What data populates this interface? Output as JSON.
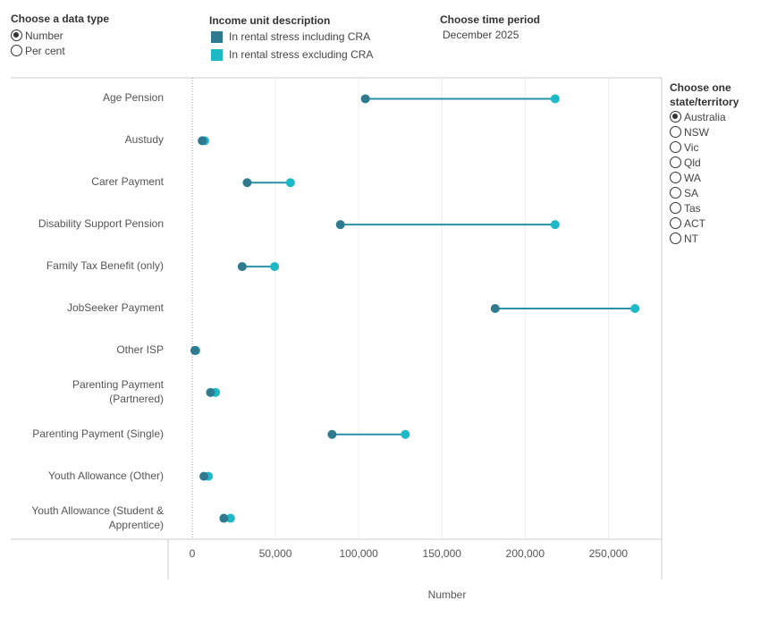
{
  "controls": {
    "data_type": {
      "title": "Choose a data type",
      "options": [
        "Number",
        "Per cent"
      ],
      "selected": 0
    },
    "time_period": {
      "title": "Choose time period",
      "value": "December 2025"
    },
    "state": {
      "title": "Choose one state/territory",
      "options": [
        "Australia",
        "NSW",
        "Vic",
        "Qld",
        "WA",
        "SA",
        "Tas",
        "ACT",
        "NT"
      ],
      "selected": 0
    }
  },
  "chart_data": {
    "type": "dumbbell",
    "legend_title": "Income unit description",
    "x_label": "Number",
    "categories": [
      "Age Pension",
      "Austudy",
      "Carer Payment",
      "Disability Support Pension",
      "Family Tax Benefit (only)",
      "JobSeeker Payment",
      "Other ISP",
      "Parenting Payment (Partnered)",
      "Parenting Payment (Single)",
      "Youth Allowance (Other)",
      "Youth Allowance (Student & Apprentice)"
    ],
    "series": [
      {
        "name": "In rental stress including CRA",
        "color": "#2f7a8e",
        "values": [
          104000,
          6000,
          33000,
          89000,
          30000,
          182000,
          1600,
          11000,
          84000,
          7000,
          19000
        ]
      },
      {
        "name": "In rental stress excluding CRA",
        "color": "#1db9c6",
        "values": [
          218000,
          7500,
          59000,
          218000,
          49500,
          266000,
          2200,
          14000,
          128000,
          9700,
          23000
        ]
      }
    ],
    "connector_color": "#2a90a6",
    "xlim": [
      -14500,
      282000
    ],
    "xticks": [
      0,
      {
        "value": 50000,
        "label": "50,000"
      },
      {
        "value": 100000,
        "label": "100,000"
      },
      {
        "value": 150000,
        "label": "150,000"
      },
      {
        "value": 200000,
        "label": "200,000"
      },
      {
        "value": 250000,
        "label": "250,000"
      }
    ],
    "grid": true
  }
}
